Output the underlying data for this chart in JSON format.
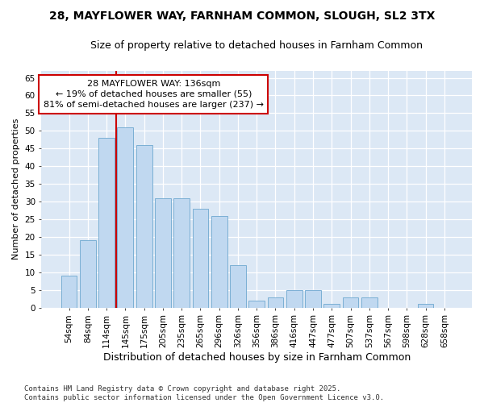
{
  "title_line1": "28, MAYFLOWER WAY, FARNHAM COMMON, SLOUGH, SL2 3TX",
  "title_line2": "Size of property relative to detached houses in Farnham Common",
  "xlabel": "Distribution of detached houses by size in Farnham Common",
  "ylabel": "Number of detached properties",
  "categories": [
    "54sqm",
    "84sqm",
    "114sqm",
    "145sqm",
    "175sqm",
    "205sqm",
    "235sqm",
    "265sqm",
    "296sqm",
    "326sqm",
    "356sqm",
    "386sqm",
    "416sqm",
    "447sqm",
    "477sqm",
    "507sqm",
    "537sqm",
    "567sqm",
    "598sqm",
    "628sqm",
    "658sqm"
  ],
  "values": [
    9,
    19,
    48,
    51,
    46,
    31,
    31,
    28,
    26,
    12,
    2,
    3,
    5,
    5,
    1,
    3,
    3,
    0,
    0,
    1,
    0
  ],
  "bar_color": "#c0d8f0",
  "bar_edge_color": "#7aafd4",
  "vline_color": "#cc0000",
  "vline_xindex": 2.5,
  "annotation_text": "28 MAYFLOWER WAY: 136sqm\n← 19% of detached houses are smaller (55)\n81% of semi-detached houses are larger (237) →",
  "annotation_box_facecolor": "#ffffff",
  "annotation_box_edgecolor": "#cc0000",
  "ylim_max": 67,
  "yticks": [
    0,
    5,
    10,
    15,
    20,
    25,
    30,
    35,
    40,
    45,
    50,
    55,
    60,
    65
  ],
  "footer": "Contains HM Land Registry data © Crown copyright and database right 2025.\nContains public sector information licensed under the Open Government Licence v3.0.",
  "fig_bg_color": "#ffffff",
  "plot_bg_color": "#dce8f5",
  "grid_color": "#ffffff",
  "title_fontsize": 10,
  "subtitle_fontsize": 9,
  "xlabel_fontsize": 9,
  "ylabel_fontsize": 8,
  "tick_fontsize": 7.5,
  "annotation_fontsize": 8,
  "footer_fontsize": 6.5
}
